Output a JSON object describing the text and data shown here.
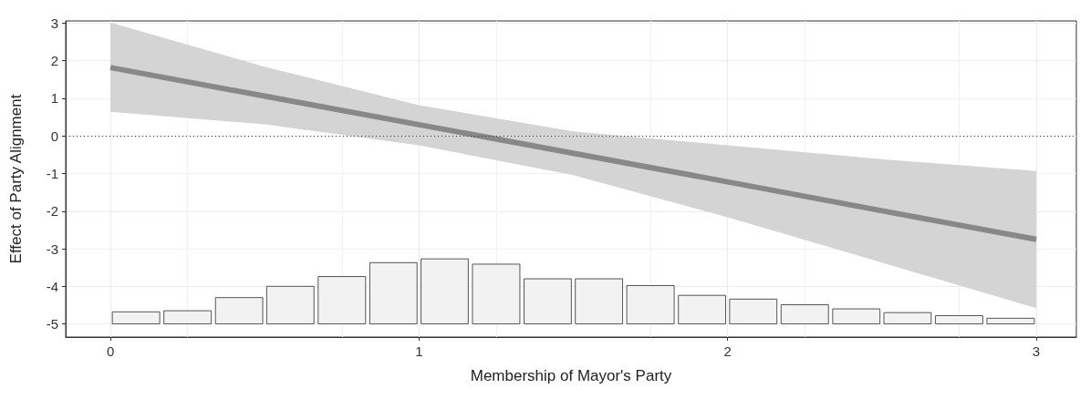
{
  "chart_data": {
    "type": "line",
    "xlabel": "Membership of Mayor's Party",
    "ylabel": "Effect of Party Alignment",
    "xlim": [
      -0.145,
      3.13
    ],
    "xticks": [
      0,
      1,
      2,
      3
    ],
    "ylim": [
      -5.35,
      3.06
    ],
    "yticks": [
      -5,
      -4,
      -3,
      -2,
      -1,
      0,
      1,
      2,
      3
    ],
    "grid": true,
    "ref_lines": [
      {
        "axis": "y",
        "value": 0,
        "color": "#333333",
        "line_style": "dotted"
      }
    ],
    "series": [
      {
        "color": "#888888",
        "x": [
          0,
          0.5,
          1,
          1.5,
          2,
          2.5,
          3
        ],
        "values": [
          1.82,
          1.06,
          0.3,
          -0.46,
          -1.22,
          -1.99,
          -2.75
        ],
        "lower": [
          0.64,
          0.31,
          -0.25,
          -1.04,
          -2.16,
          -3.37,
          -4.58
        ],
        "upper": [
          3.02,
          1.84,
          0.82,
          0.12,
          -0.25,
          -0.62,
          -0.93
        ]
      },
      {
        "type": "bar",
        "color": "#f2f2f2",
        "x": [
          0.083,
          0.25,
          0.417,
          0.583,
          0.75,
          0.917,
          1.083,
          1.25,
          1.417,
          1.583,
          1.75,
          1.917,
          2.083,
          2.25,
          2.417,
          2.583,
          2.75,
          2.917
        ],
        "base": [
          -5,
          -5,
          -5,
          -5,
          -5,
          -5,
          -5,
          -5,
          -5,
          -5,
          -5,
          -5,
          -5,
          -5,
          -5,
          -5,
          -5,
          -5
        ],
        "values": [
          0.32,
          0.35,
          0.7,
          1.0,
          1.26,
          1.63,
          1.73,
          1.59,
          1.2,
          1.2,
          1.02,
          0.76,
          0.66,
          0.51,
          0.4,
          0.3,
          0.22,
          0.15
        ]
      }
    ]
  }
}
